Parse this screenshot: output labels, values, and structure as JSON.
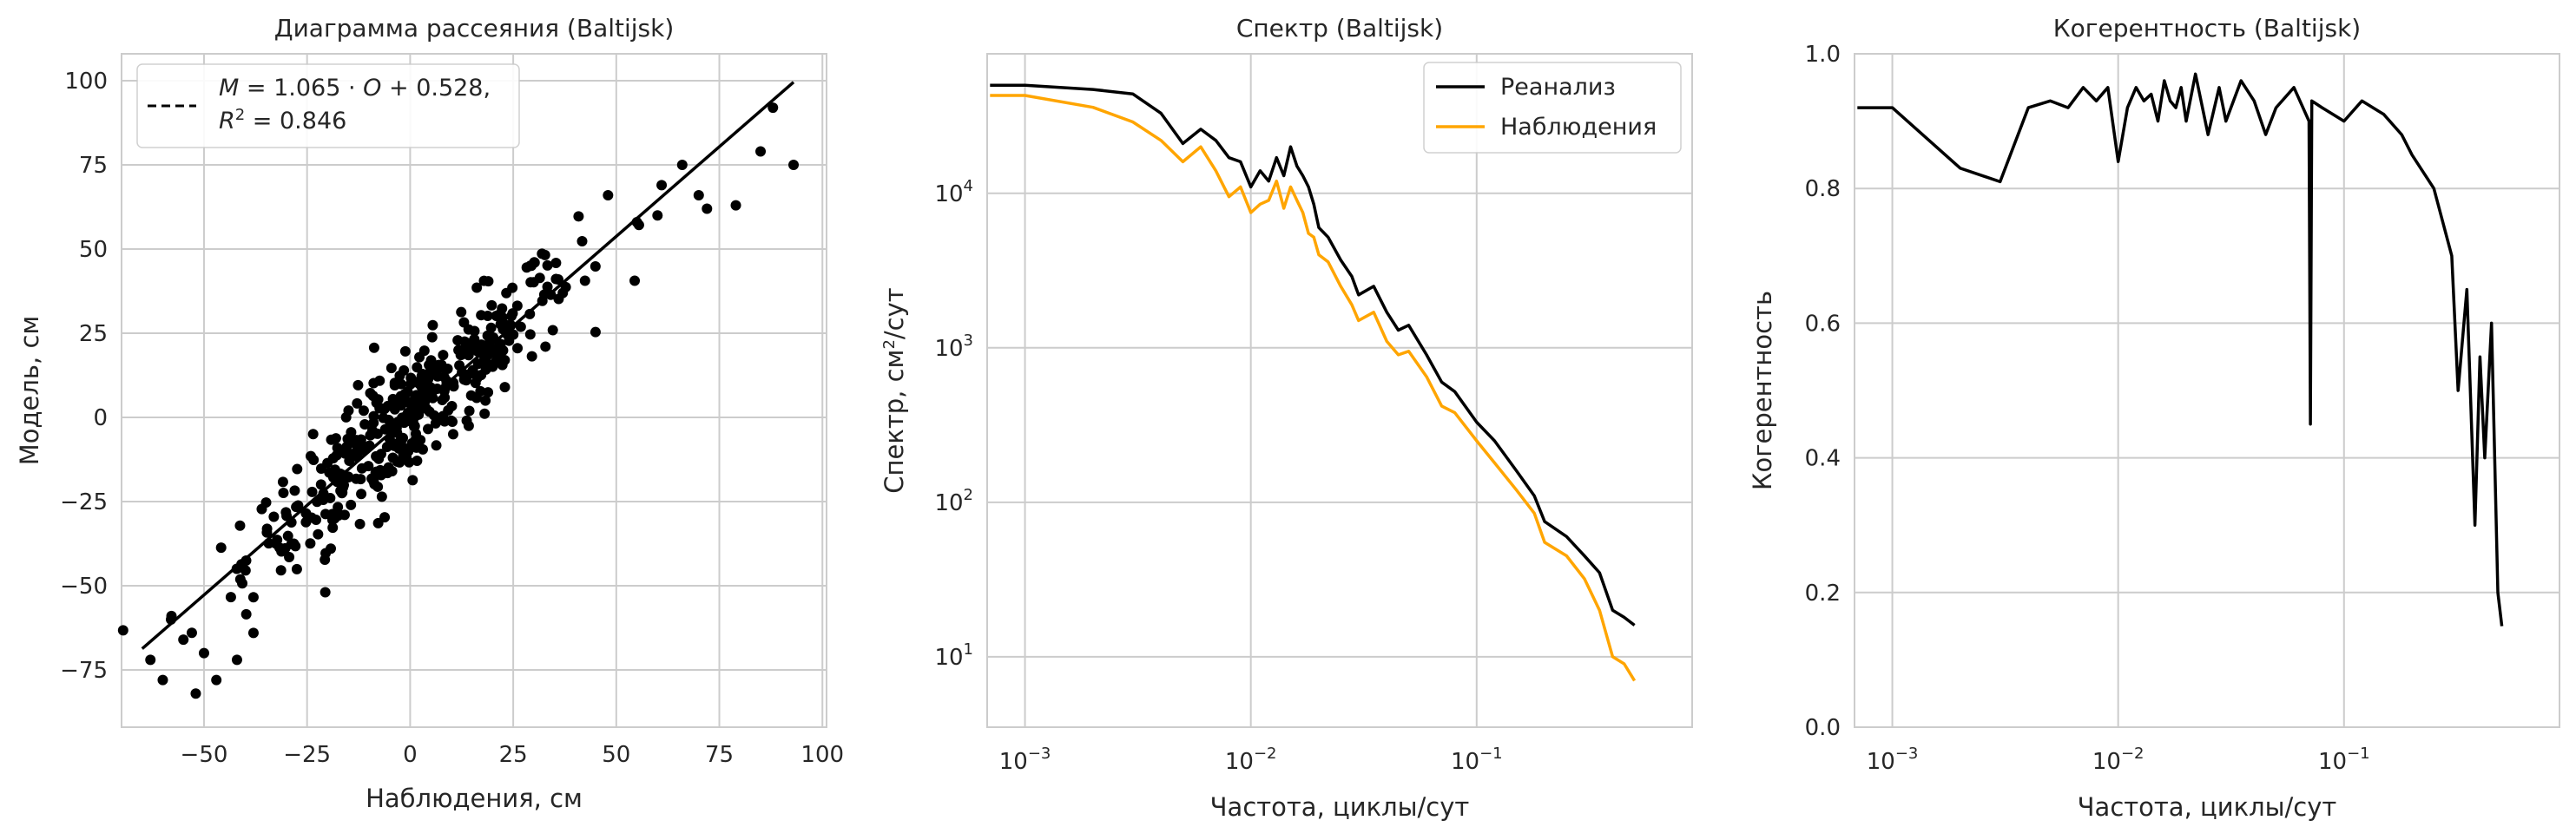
{
  "chart_data": [
    {
      "type": "scatter",
      "title": "Диаграмма рассеяния (Baltijsk)",
      "xlabel": "Наблюдения, см",
      "ylabel": "Модель, см",
      "xlim": [
        -70,
        101
      ],
      "ylim": [
        -92,
        108
      ],
      "xticks": [
        -50,
        -25,
        0,
        25,
        50,
        75,
        100
      ],
      "yticks": [
        -75,
        -50,
        -25,
        0,
        25,
        50,
        75,
        100
      ],
      "xtick_labels": [
        "−50",
        "−25",
        "0",
        "25",
        "50",
        "75",
        "100"
      ],
      "ytick_labels": [
        "−75",
        "−50",
        "−25",
        "0",
        "25",
        "50",
        "75",
        "100"
      ],
      "grid": true,
      "fit": {
        "slope": 1.065,
        "intercept": 0.528,
        "r2": 0.846,
        "x_range": [
          -65,
          93
        ]
      },
      "legend": {
        "position": "top-left",
        "line1": [
          "M",
          " = 1.065 · ",
          "O",
          " + 0.528,"
        ],
        "line2": [
          "R",
          "2",
          " = 0.846"
        ]
      },
      "series": [
        {
          "color": "#000000",
          "points_note_count": 420
        }
      ],
      "outliers": [
        [
          -60,
          -78
        ],
        [
          -52,
          -82
        ],
        [
          -47,
          -78
        ],
        [
          -55,
          -66
        ],
        [
          -42,
          -72
        ],
        [
          88,
          92
        ],
        [
          93,
          75
        ],
        [
          85,
          79
        ],
        [
          66,
          75
        ],
        [
          61,
          69
        ],
        [
          72,
          62
        ],
        [
          79,
          63
        ],
        [
          -63,
          -72
        ],
        [
          -58,
          -60
        ],
        [
          -50,
          -70
        ],
        [
          48,
          66
        ],
        [
          55,
          58
        ],
        [
          60,
          60
        ],
        [
          -38,
          -64
        ],
        [
          70,
          66
        ]
      ]
    },
    {
      "type": "line",
      "title": "Спектр (Baltijsk)",
      "xlabel": "Частота, циклы/сут",
      "ylabel_parts": [
        "Спектр, см",
        "2",
        "/сут"
      ],
      "xscale": "log",
      "yscale": "log",
      "xlim": [
        0.00068,
        0.9
      ],
      "ylim": [
        3.5,
        80000
      ],
      "xticks": [
        0.001,
        0.01,
        0.1
      ],
      "xtick_base": [
        "10",
        "10",
        "10"
      ],
      "xtick_exp": [
        "−3",
        "−2",
        "−1"
      ],
      "yticks": [
        10,
        100,
        1000,
        10000
      ],
      "ytick_base": [
        "10",
        "10",
        "10",
        "10"
      ],
      "ytick_exp": [
        "1",
        "2",
        "3",
        "4"
      ],
      "grid": true,
      "legend": {
        "position": "top-right"
      },
      "series": [
        {
          "name": "Реанализ",
          "color": "#000000",
          "x": [
            0.0007,
            0.001,
            0.002,
            0.003,
            0.004,
            0.005,
            0.006,
            0.007,
            0.008,
            0.009,
            0.01,
            0.011,
            0.012,
            0.013,
            0.014,
            0.015,
            0.016,
            0.017,
            0.018,
            0.019,
            0.02,
            0.022,
            0.025,
            0.028,
            0.03,
            0.035,
            0.04,
            0.045,
            0.05,
            0.06,
            0.07,
            0.08,
            0.1,
            0.12,
            0.15,
            0.18,
            0.2,
            0.25,
            0.3,
            0.35,
            0.4,
            0.45,
            0.5
          ],
          "y": [
            50000,
            50000,
            47000,
            44000,
            33000,
            21000,
            26000,
            22000,
            17000,
            16000,
            11000,
            14000,
            12000,
            17000,
            13000,
            20000,
            15000,
            13000,
            11000,
            8500,
            6000,
            5200,
            3700,
            2900,
            2200,
            2500,
            1700,
            1300,
            1400,
            900,
            600,
            520,
            330,
            250,
            160,
            110,
            75,
            60,
            45,
            35,
            20,
            18,
            16
          ]
        },
        {
          "name": "Наблюдения",
          "color": "#FFA500",
          "x": [
            0.0007,
            0.001,
            0.002,
            0.003,
            0.004,
            0.005,
            0.006,
            0.007,
            0.008,
            0.009,
            0.01,
            0.011,
            0.012,
            0.013,
            0.014,
            0.015,
            0.016,
            0.017,
            0.018,
            0.019,
            0.02,
            0.022,
            0.025,
            0.028,
            0.03,
            0.035,
            0.04,
            0.045,
            0.05,
            0.06,
            0.07,
            0.08,
            0.1,
            0.12,
            0.15,
            0.18,
            0.2,
            0.25,
            0.3,
            0.35,
            0.4,
            0.45,
            0.5
          ],
          "y": [
            43000,
            43000,
            36000,
            29000,
            22000,
            16000,
            20000,
            14000,
            9500,
            11000,
            7500,
            8500,
            9000,
            12000,
            8000,
            11000,
            9000,
            7500,
            5500,
            5200,
            4000,
            3600,
            2500,
            1900,
            1500,
            1700,
            1100,
            900,
            950,
            650,
            420,
            380,
            250,
            180,
            120,
            85,
            55,
            45,
            32,
            20,
            10,
            9,
            7
          ]
        }
      ]
    },
    {
      "type": "line",
      "title": "Когерентность (Baltijsk)",
      "xlabel": "Частота, циклы/сут",
      "ylabel": "Когерентность",
      "xscale": "log",
      "xlim": [
        0.00068,
        0.9
      ],
      "ylim": [
        0.0,
        1.0
      ],
      "xticks": [
        0.001,
        0.01,
        0.1
      ],
      "xtick_base": [
        "10",
        "10",
        "10"
      ],
      "xtick_exp": [
        "−3",
        "−2",
        "−1"
      ],
      "yticks": [
        0.0,
        0.2,
        0.4,
        0.6,
        0.8,
        1.0
      ],
      "ytick_labels": [
        "0.0",
        "0.2",
        "0.4",
        "0.6",
        "0.8",
        "1.0"
      ],
      "grid": true,
      "series": [
        {
          "color": "#000000",
          "x": [
            0.0007,
            0.001,
            0.002,
            0.003,
            0.004,
            0.005,
            0.006,
            0.007,
            0.008,
            0.009,
            0.01,
            0.011,
            0.012,
            0.013,
            0.014,
            0.015,
            0.016,
            0.017,
            0.018,
            0.019,
            0.02,
            0.022,
            0.025,
            0.028,
            0.03,
            0.035,
            0.04,
            0.045,
            0.05,
            0.06,
            0.07,
            0.071,
            0.072,
            0.08,
            0.1,
            0.12,
            0.15,
            0.18,
            0.2,
            0.25,
            0.3,
            0.32,
            0.35,
            0.38,
            0.4,
            0.42,
            0.45,
            0.48,
            0.5
          ],
          "y": [
            0.92,
            0.92,
            0.83,
            0.81,
            0.92,
            0.93,
            0.92,
            0.95,
            0.93,
            0.95,
            0.84,
            0.92,
            0.95,
            0.93,
            0.94,
            0.9,
            0.96,
            0.93,
            0.92,
            0.95,
            0.9,
            0.97,
            0.88,
            0.95,
            0.9,
            0.96,
            0.93,
            0.88,
            0.92,
            0.95,
            0.9,
            0.45,
            0.93,
            0.92,
            0.9,
            0.93,
            0.91,
            0.88,
            0.85,
            0.8,
            0.7,
            0.5,
            0.65,
            0.3,
            0.55,
            0.4,
            0.6,
            0.2,
            0.15
          ]
        }
      ]
    }
  ]
}
